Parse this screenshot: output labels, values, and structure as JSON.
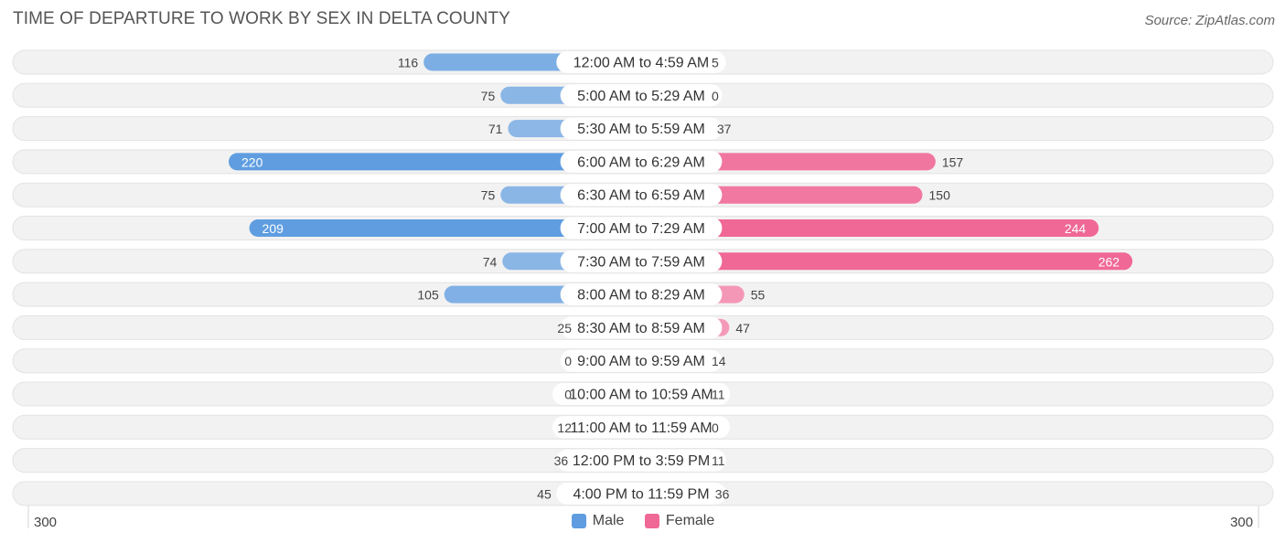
{
  "header": {
    "title": "TIME OF DEPARTURE TO WORK BY SEX IN DELTA COUNTY",
    "source": "Source: ZipAtlas.com"
  },
  "colors": {
    "male_light": "#a4c5ea",
    "male_dark": "#5f9de0",
    "female_light": "#f5a9c3",
    "female_dark": "#f06895",
    "row_bg": "#f1f1f1"
  },
  "legend": {
    "male": "Male",
    "female": "Female"
  },
  "axis": {
    "left_label": "300",
    "right_label": "300"
  },
  "chart_data": {
    "type": "bar",
    "orientation": "horizontal-diverging",
    "title": "TIME OF DEPARTURE TO WORK BY SEX IN DELTA COUNTY",
    "xlim": [
      -300,
      300
    ],
    "categories": [
      "12:00 AM to 4:59 AM",
      "5:00 AM to 5:29 AM",
      "5:30 AM to 5:59 AM",
      "6:00 AM to 6:29 AM",
      "6:30 AM to 6:59 AM",
      "7:00 AM to 7:29 AM",
      "7:30 AM to 7:59 AM",
      "8:00 AM to 8:29 AM",
      "8:30 AM to 8:59 AM",
      "9:00 AM to 9:59 AM",
      "10:00 AM to 10:59 AM",
      "11:00 AM to 11:59 AM",
      "12:00 PM to 3:59 PM",
      "4:00 PM to 11:59 PM"
    ],
    "series": [
      {
        "name": "Male",
        "values": [
          116,
          75,
          71,
          220,
          75,
          209,
          74,
          105,
          25,
          0,
          0,
          12,
          36,
          45
        ]
      },
      {
        "name": "Female",
        "values": [
          5,
          0,
          37,
          157,
          150,
          244,
          262,
          55,
          47,
          14,
          11,
          0,
          11,
          36
        ]
      }
    ]
  }
}
